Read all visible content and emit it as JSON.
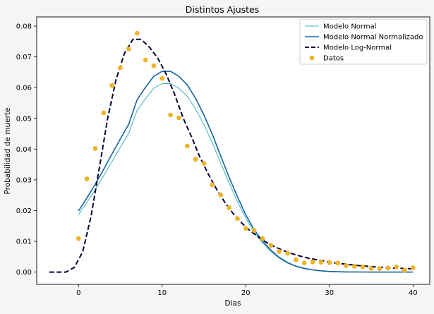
{
  "chart_data": {
    "type": "line",
    "title": "Distintos Ajustes",
    "xlabel": "Dias",
    "ylabel": "Probabilidad de muerte",
    "xlim": [
      -5,
      42
    ],
    "ylim": [
      -0.004,
      0.083
    ],
    "xticks": [
      0,
      10,
      20,
      30,
      40
    ],
    "yticks": [
      0.0,
      0.01,
      0.02,
      0.03,
      0.04,
      0.05,
      0.06,
      0.07,
      0.08
    ],
    "ytick_labels": [
      "0.00",
      "0.01",
      "0.02",
      "0.03",
      "0.04",
      "0.05",
      "0.06",
      "0.07",
      "0.08"
    ],
    "grid": false,
    "legend_position": "top-right",
    "series": [
      {
        "name": "Modelo Normal",
        "kind": "line",
        "color": "#3fb0bd",
        "dashed": false,
        "x": [
          0,
          1,
          2,
          3,
          4,
          5,
          6,
          7,
          8,
          9,
          10,
          11,
          12,
          13,
          14,
          15,
          16,
          17,
          18,
          19,
          20,
          21,
          22,
          23,
          24,
          25,
          26,
          27,
          28,
          29,
          30,
          31,
          32,
          33,
          34,
          35,
          36,
          37,
          38,
          39,
          40
        ],
        "y": [
          0.0187,
          0.0226,
          0.0268,
          0.0313,
          0.036,
          0.0406,
          0.0451,
          0.0526,
          0.0564,
          0.0598,
          0.0613,
          0.0613,
          0.0598,
          0.0572,
          0.053,
          0.048,
          0.042,
          0.0355,
          0.029,
          0.023,
          0.0175,
          0.013,
          0.0095,
          0.0067,
          0.0045,
          0.0029,
          0.0018,
          0.0011,
          0.00065,
          0.00037,
          0.0002,
          0.0001,
          5e-05,
          3e-05,
          1e-05,
          0.0,
          0.0,
          0.0,
          0.0,
          0.0,
          0.0
        ]
      },
      {
        "name": "Modelo Normal Normalizado",
        "kind": "line",
        "color": "#1464a0",
        "dashed": false,
        "x": [
          0,
          1,
          2,
          3,
          4,
          5,
          6,
          7,
          8,
          9,
          10,
          11,
          12,
          13,
          14,
          15,
          16,
          17,
          18,
          19,
          20,
          21,
          22,
          23,
          24,
          25,
          26,
          27,
          28,
          29,
          30,
          31,
          32,
          33,
          34,
          35,
          36,
          37,
          38,
          39,
          40
        ],
        "y": [
          0.0199,
          0.0241,
          0.0286,
          0.0334,
          0.0384,
          0.0433,
          0.0481,
          0.056,
          0.0601,
          0.0637,
          0.0653,
          0.0653,
          0.0637,
          0.0609,
          0.0565,
          0.0511,
          0.0448,
          0.0378,
          0.0309,
          0.0245,
          0.0186,
          0.0138,
          0.0101,
          0.0071,
          0.0048,
          0.0031,
          0.0019,
          0.0012,
          0.0007,
          0.0004,
          0.0002,
          0.0001,
          5e-05,
          3e-05,
          1e-05,
          0.0,
          0.0,
          0.0,
          0.0,
          0.0,
          0.0
        ]
      },
      {
        "name": "Modelo Log-Normal",
        "kind": "line",
        "color": "#000033",
        "dashed": true,
        "x": [
          -3.5,
          -1.5,
          -0.5,
          0.5,
          1.5,
          2.5,
          3.5,
          4.5,
          5.5,
          6.5,
          7.5,
          8.5,
          9.5,
          10.5,
          11.5,
          12.5,
          13.5,
          14.5,
          15.5,
          16.5,
          17.5,
          18.5,
          19.5,
          20.5,
          21.5,
          22.5,
          23.5,
          24.5,
          25.5,
          26.5,
          27.5,
          28.5,
          29.5,
          30.5,
          31.5,
          32.5,
          33.5,
          34.5,
          35.5,
          36.5,
          37.5,
          38.5,
          39.5,
          40.0
        ],
        "y": [
          0.0,
          0.0,
          0.0015,
          0.0066,
          0.0181,
          0.0341,
          0.0502,
          0.0627,
          0.0712,
          0.0757,
          0.0757,
          0.0731,
          0.0695,
          0.0643,
          0.0578,
          0.0502,
          0.0441,
          0.0375,
          0.032,
          0.027,
          0.0227,
          0.019,
          0.016,
          0.0135,
          0.0114,
          0.0096,
          0.0082,
          0.007,
          0.006,
          0.0052,
          0.0045,
          0.004,
          0.0035,
          0.003,
          0.0027,
          0.0024,
          0.0021,
          0.0019,
          0.0017,
          0.0015,
          0.0013,
          0.0012,
          0.0011,
          0.001
        ]
      },
      {
        "name": "Datos",
        "kind": "scatter",
        "color": "#f0b429",
        "x": [
          0,
          1,
          2,
          3,
          4,
          5,
          6,
          7,
          8,
          9,
          10,
          11,
          12,
          13,
          14,
          15,
          16,
          17,
          18,
          19,
          20,
          21,
          22,
          23,
          24,
          25,
          26,
          27,
          28,
          29,
          30,
          31,
          32,
          33,
          34,
          35,
          36,
          37,
          38,
          39,
          40
        ],
        "y": [
          0.0109,
          0.0303,
          0.0402,
          0.0518,
          0.0607,
          0.0665,
          0.0726,
          0.0777,
          0.069,
          0.0671,
          0.063,
          0.0511,
          0.0502,
          0.041,
          0.0367,
          0.0354,
          0.0284,
          0.0251,
          0.0209,
          0.0174,
          0.0142,
          0.0135,
          0.0109,
          0.0087,
          0.0067,
          0.0061,
          0.004,
          0.003,
          0.0033,
          0.0032,
          0.0031,
          0.0029,
          0.0021,
          0.0019,
          0.0017,
          0.0012,
          0.0011,
          0.0013,
          0.0017,
          0.0006,
          0.0014
        ]
      }
    ]
  }
}
